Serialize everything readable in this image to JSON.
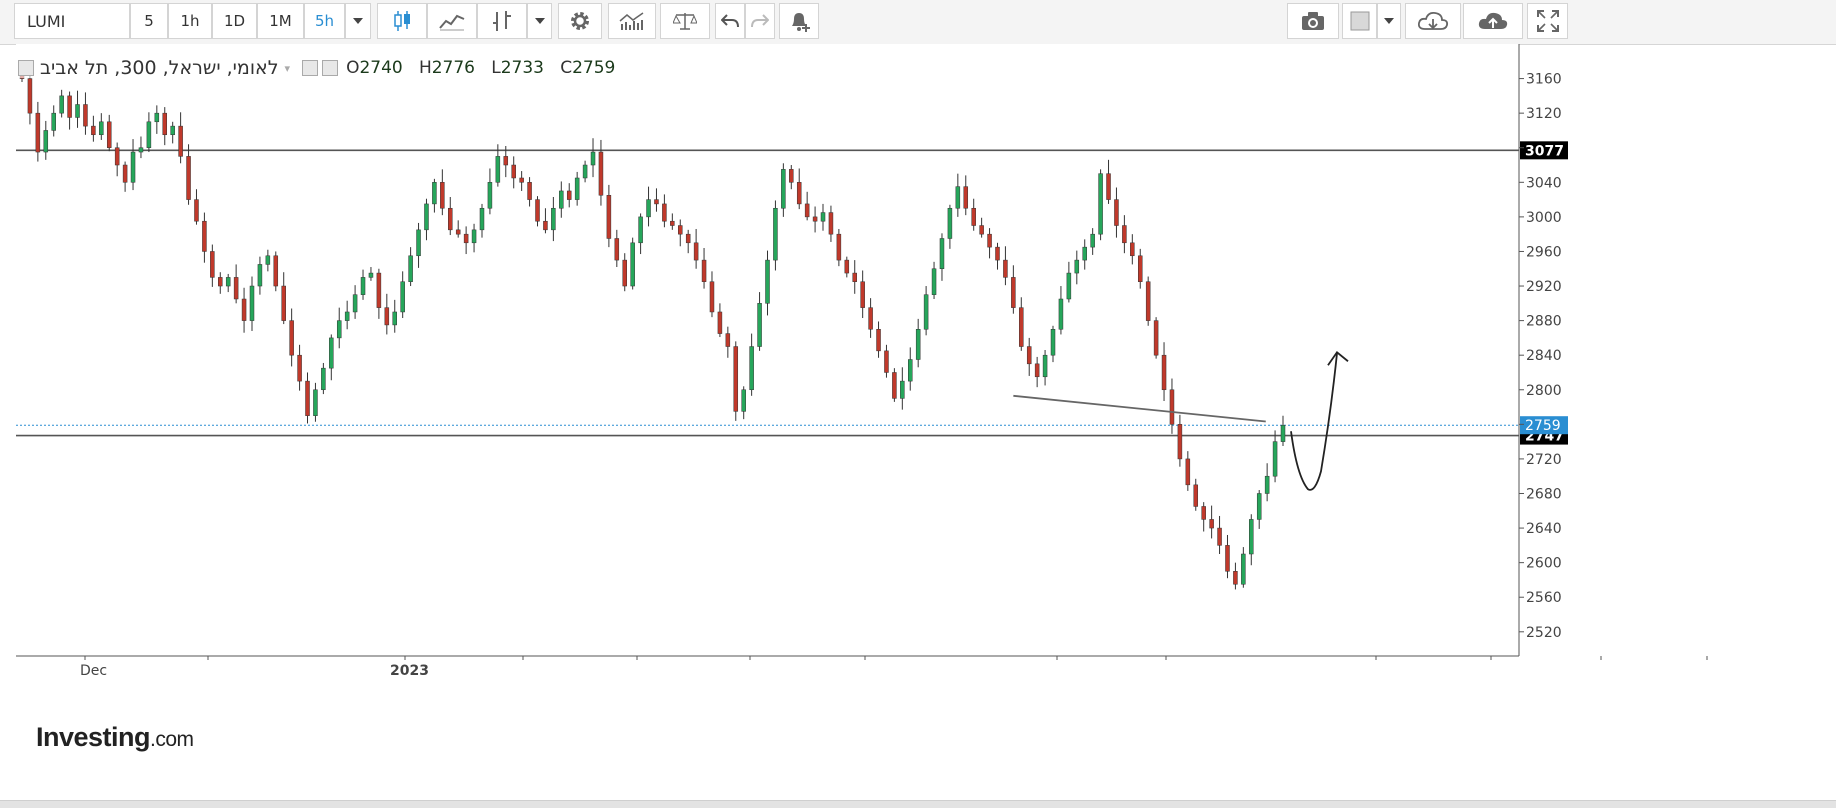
{
  "toolbar": {
    "symbol": "LUMI",
    "intervals": [
      "5",
      "1h",
      "1D",
      "1M",
      "5h"
    ],
    "active_interval": "5h",
    "icons": [
      "interval-dropdown-icon",
      "candlestick-icon",
      "line-chart-icon",
      "bar-chart-icon",
      "chart-type-dropdown-icon",
      "gear-icon",
      "indicators-icon",
      "compare-scale-icon",
      "undo-icon",
      "redo-icon",
      "alert-bell-icon",
      "camera-icon",
      "color-swatch-icon",
      "swatch-dropdown-icon",
      "cloud-download-icon",
      "cloud-upload-icon",
      "fullscreen-icon"
    ]
  },
  "legend": {
    "title": "לאומי, ישראל, 300, תל אביב",
    "o_label": "O",
    "o_value": "2740",
    "h_label": "H",
    "h_value": "2776",
    "l_label": "L",
    "l_value": "2733",
    "c_label": "C",
    "c_value": "2759"
  },
  "logo": {
    "name": "Investing",
    "suffix": ".com"
  },
  "chart_data": {
    "type": "candlestick",
    "symbol": "LUMI",
    "interval": "5h",
    "y_ticks": [
      3160,
      3120,
      3080,
      3040,
      3000,
      2960,
      2920,
      2880,
      2840,
      2800,
      2760,
      2720,
      2680,
      2640,
      2600,
      2560,
      2520
    ],
    "y_tick_labels_shown": [
      3160,
      3120,
      3040,
      3000,
      2960,
      2920,
      2880,
      2840,
      2800,
      2720,
      2680,
      2640,
      2600,
      2560,
      2520
    ],
    "x_labels": [
      "Dec",
      "2023"
    ],
    "ylim": [
      2492,
      3200
    ],
    "horizontal_lines": [
      {
        "value": 3077,
        "label": "3077",
        "color": "#000000"
      },
      {
        "value": 2747,
        "label": "2747",
        "color": "#000000"
      }
    ],
    "last_price": {
      "value": 2759,
      "label": "2759",
      "color": "#2a8ed2"
    },
    "trend_line": {
      "from": [
        125,
        2793
      ],
      "to": [
        148,
        2761
      ]
    },
    "up_color": "#26a65b",
    "down_color": "#c0392b",
    "closes": [
      3160,
      3120,
      3075,
      3100,
      3120,
      3140,
      3115,
      3130,
      3105,
      3095,
      3110,
      3080,
      3060,
      3040,
      3075,
      3080,
      3110,
      3120,
      3095,
      3105,
      3070,
      3020,
      2995,
      2960,
      2930,
      2920,
      2930,
      2905,
      2880,
      2920,
      2945,
      2955,
      2920,
      2880,
      2840,
      2810,
      2770,
      2800,
      2825,
      2860,
      2880,
      2890,
      2910,
      2930,
      2935,
      2895,
      2875,
      2890,
      2925,
      2955,
      2985,
      3015,
      3040,
      3010,
      2985,
      2980,
      2970,
      2985,
      3010,
      3040,
      3070,
      3060,
      3045,
      3040,
      3020,
      2995,
      2985,
      3010,
      3030,
      3020,
      3045,
      3060,
      3075,
      3025,
      2975,
      2950,
      2920,
      2970,
      3000,
      3020,
      3015,
      2995,
      2990,
      2980,
      2970,
      2950,
      2925,
      2890,
      2865,
      2850,
      2775,
      2800,
      2850,
      2900,
      2950,
      3010,
      3055,
      3040,
      3015,
      3000,
      2995,
      3005,
      2980,
      2950,
      2935,
      2925,
      2895,
      2870,
      2845,
      2820,
      2790,
      2810,
      2835,
      2870,
      2910,
      2940,
      2975,
      3010,
      3035,
      3010,
      2990,
      2980,
      2965,
      2950,
      2930,
      2895,
      2850,
      2830,
      2815,
      2840,
      2870,
      2905,
      2935,
      2950,
      2965,
      2980,
      3050,
      3020,
      2990,
      2970,
      2955,
      2925,
      2880,
      2840,
      2800,
      2760,
      2720,
      2690,
      2665,
      2650,
      2640,
      2620,
      2590,
      2575,
      2610,
      2650,
      2680,
      2700,
      2740,
      2759
    ]
  }
}
